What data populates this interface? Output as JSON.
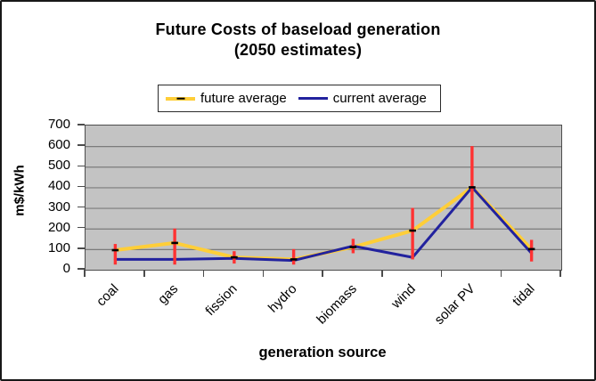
{
  "title": {
    "line1": "Future Costs of baseload generation",
    "line2": "(2050 estimates)"
  },
  "chart_data": {
    "type": "line",
    "title": "Future Costs of baseload generation (2050 estimates)",
    "categories": [
      "coal",
      "gas",
      "fission",
      "hydro",
      "biomass",
      "wind",
      "solar PV",
      "tidal"
    ],
    "series": [
      {
        "name": "future average",
        "color": "#FFCE38",
        "marker": "black-dash",
        "values": [
          95,
          130,
          60,
          50,
          110,
          190,
          400,
          100
        ]
      },
      {
        "name": "current average",
        "color": "#22229E",
        "marker": "none",
        "values": [
          50,
          50,
          55,
          45,
          115,
          60,
          400,
          80
        ]
      }
    ],
    "error_bars": {
      "series": "future average",
      "color": "#FF3232",
      "ranges": [
        [
          25,
          125
        ],
        [
          25,
          200
        ],
        [
          30,
          90
        ],
        [
          25,
          100
        ],
        [
          80,
          150
        ],
        [
          50,
          300
        ],
        [
          200,
          600
        ],
        [
          40,
          145
        ]
      ]
    },
    "xlabel": "generation source",
    "ylabel": "m$/kWh",
    "ylim": [
      0,
      700
    ],
    "ytick_step": 100,
    "grid": true,
    "grid_color": "#7b7b7b",
    "plot_bg": "#C3C3C3",
    "legend_position": "top-center"
  }
}
